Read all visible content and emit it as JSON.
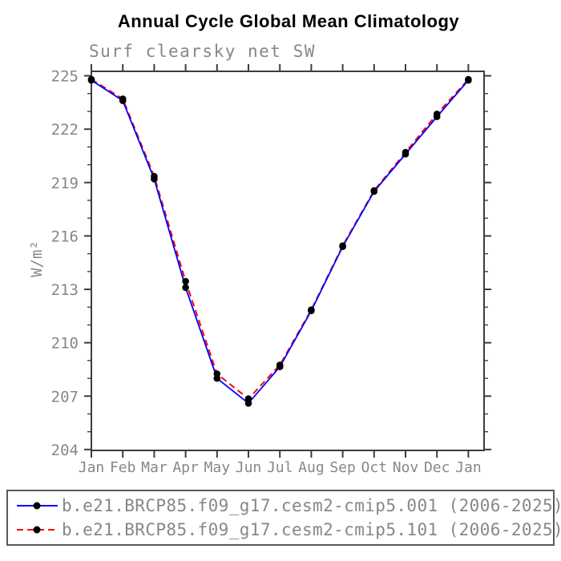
{
  "chart": {
    "title": "Annual Cycle Global Mean Climatology",
    "subtitle": "Surf clearsky net SW",
    "ylabel": "W/m²"
  },
  "chart_data": {
    "type": "line",
    "title": "Annual Cycle Global Mean Climatology",
    "subtitle": "Surf clearsky net SW",
    "xlabel": "",
    "ylabel": "W/m²",
    "categories": [
      "Jan",
      "Feb",
      "Mar",
      "Apr",
      "May",
      "Jun",
      "Jul",
      "Aug",
      "Sep",
      "Oct",
      "Nov",
      "Dec",
      "Jan"
    ],
    "x_range": [
      0,
      12.5
    ],
    "ylim": [
      203.95,
      225.25
    ],
    "yticks_major": [
      204,
      207,
      210,
      213,
      216,
      219,
      222,
      225
    ],
    "ytick_minor_step": 1,
    "grid": false,
    "legend_position": "bottom",
    "axis_color": "#3d3d3d",
    "tick_label_color": "#878787",
    "marker_color": "#000000",
    "series": [
      {
        "name": "b.e21.BRCP85.f09_g17.cesm2-cmip5.001",
        "label": "b.e21.BRCP85.f09_g17.cesm2-cmip5.001 (2006-2025)",
        "color": "#0000ff",
        "line_style": "solid",
        "values": [
          224.75,
          223.6,
          219.2,
          213.1,
          208.0,
          206.6,
          208.65,
          211.8,
          215.4,
          218.5,
          220.6,
          222.7,
          224.75
        ]
      },
      {
        "name": "b.e21.BRCP85.f09_g17.cesm2-cmip5.101",
        "label": "b.e21.BRCP85.f09_g17.cesm2-cmip5.101 (2006-2025)",
        "color": "#ff0000",
        "line_style": "dashed",
        "values": [
          224.8,
          223.7,
          219.35,
          213.45,
          208.25,
          206.85,
          208.75,
          211.85,
          215.45,
          218.55,
          220.7,
          222.85,
          224.8
        ]
      }
    ]
  }
}
